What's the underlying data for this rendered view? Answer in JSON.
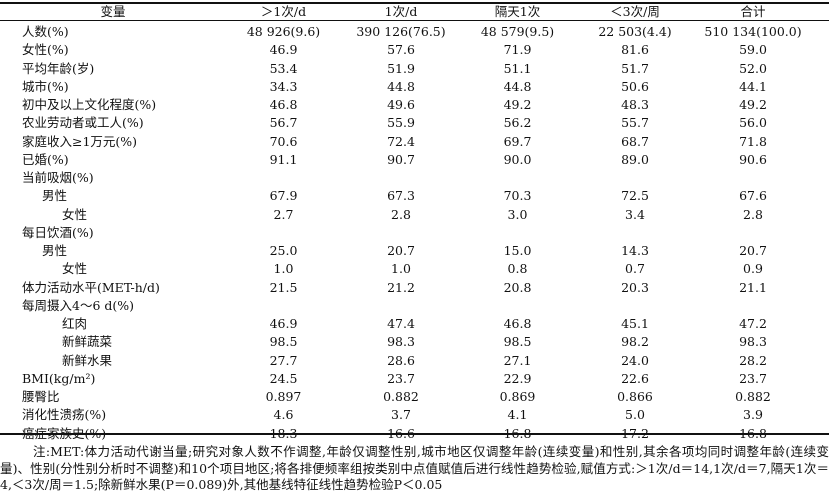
{
  "header": [
    "变量",
    "＞1次/d",
    "1次/d",
    "隔天1次",
    "＜3次/周",
    "合计"
  ],
  "rows": [
    {
      "label": "人数(%)",
      "indent": 0,
      "values": [
        "48 926(9.6)",
        "390 126(76.5)",
        "48 579(9.5)",
        "22 503(4.4)",
        "510 134(100.0)"
      ]
    },
    {
      "label": "女性(%)",
      "indent": 0,
      "values": [
        "46.9",
        "57.6",
        "71.9",
        "81.6",
        "59.0"
      ]
    },
    {
      "label": "平均年龄(岁)",
      "indent": 0,
      "values": [
        "53.4",
        "51.9",
        "51.1",
        "51.7",
        "52.0"
      ]
    },
    {
      "label": "城市(%)",
      "indent": 0,
      "values": [
        "34.3",
        "44.8",
        "44.8",
        "50.6",
        "44.1"
      ]
    },
    {
      "label": "初中及以上文化程度(%)",
      "indent": 0,
      "values": [
        "46.8",
        "49.6",
        "49.2",
        "48.3",
        "49.2"
      ]
    },
    {
      "label": "农业劳动者或工人(%)",
      "indent": 0,
      "values": [
        "56.7",
        "55.9",
        "56.2",
        "55.7",
        "56.0"
      ]
    },
    {
      "label": "家庭收入≥1万元(%)",
      "indent": 0,
      "values": [
        "70.6",
        "72.4",
        "69.7",
        "68.7",
        "71.8"
      ]
    },
    {
      "label": "已婚(%)",
      "indent": 0,
      "values": [
        "91.1",
        "90.7",
        "90.0",
        "89.0",
        "90.6"
      ]
    },
    {
      "label": "当前吸烟(%)",
      "indent": 0,
      "values": [
        "",
        "",
        "",
        "",
        ""
      ]
    },
    {
      "label": "男性",
      "indent": 1,
      "values": [
        "67.9",
        "67.3",
        "70.3",
        "72.5",
        "67.6"
      ]
    },
    {
      "label": "女性",
      "indent": 2,
      "values": [
        "2.7",
        "2.8",
        "3.0",
        "3.4",
        "2.8"
      ]
    },
    {
      "label": "每日饮酒(%)",
      "indent": 0,
      "values": [
        "",
        "",
        "",
        "",
        ""
      ]
    },
    {
      "label": "男性",
      "indent": 1,
      "values": [
        "25.0",
        "20.7",
        "15.0",
        "14.3",
        "20.7"
      ]
    },
    {
      "label": "女性",
      "indent": 2,
      "values": [
        "1.0",
        "1.0",
        "0.8",
        "0.7",
        "0.9"
      ]
    },
    {
      "label": "体力活动水平(MET-h/d)",
      "indent": 0,
      "values": [
        "21.5",
        "21.2",
        "20.8",
        "20.3",
        "21.1"
      ]
    },
    {
      "label": "每周摄入4～6 d(%)",
      "indent": 0,
      "values": [
        "",
        "",
        "",
        "",
        ""
      ]
    },
    {
      "label": "红肉",
      "indent": 2,
      "values": [
        "46.9",
        "47.4",
        "46.8",
        "45.1",
        "47.2"
      ]
    },
    {
      "label": "新鲜蔬菜",
      "indent": 2,
      "values": [
        "98.5",
        "98.3",
        "98.5",
        "98.2",
        "98.3"
      ]
    },
    {
      "label": "新鲜水果",
      "indent": 2,
      "values": [
        "27.7",
        "28.6",
        "27.1",
        "24.0",
        "28.2"
      ]
    },
    {
      "label": "BMI(kg/m²)",
      "indent": 0,
      "values": [
        "24.5",
        "23.7",
        "22.9",
        "22.6",
        "23.7"
      ]
    },
    {
      "label": "腰臀比",
      "indent": 0,
      "values": [
        "0.897",
        "0.882",
        "0.869",
        "0.866",
        "0.882"
      ]
    },
    {
      "label": "消化性溃疡(%)",
      "indent": 0,
      "values": [
        "4.6",
        "3.7",
        "4.1",
        "5.0",
        "3.9"
      ]
    },
    {
      "label": "癌症家族史(%)",
      "indent": 0,
      "values": [
        "18.3",
        "16.6",
        "16.8",
        "17.2",
        "16.8"
      ]
    }
  ],
  "note": "注:MET:体力活动代谢当量;研究对象人数不作调整,年龄仅调整性别,城市地区仅调整年龄(连续变量)和性别,其余各项均同时调整年龄(连续变量)、性别(分性别分析时不调整)和10个项目地区;将各排便频率组按类别中点值赋值后进行线性趋势检验,赋值方式:＞1次/d＝14,1次/d＝7,隔天1次＝4,＜3次/周＝1.5;除新鲜水果(P＝0.089)外,其他基线特征线性趋势检验P＜0.05"
}
